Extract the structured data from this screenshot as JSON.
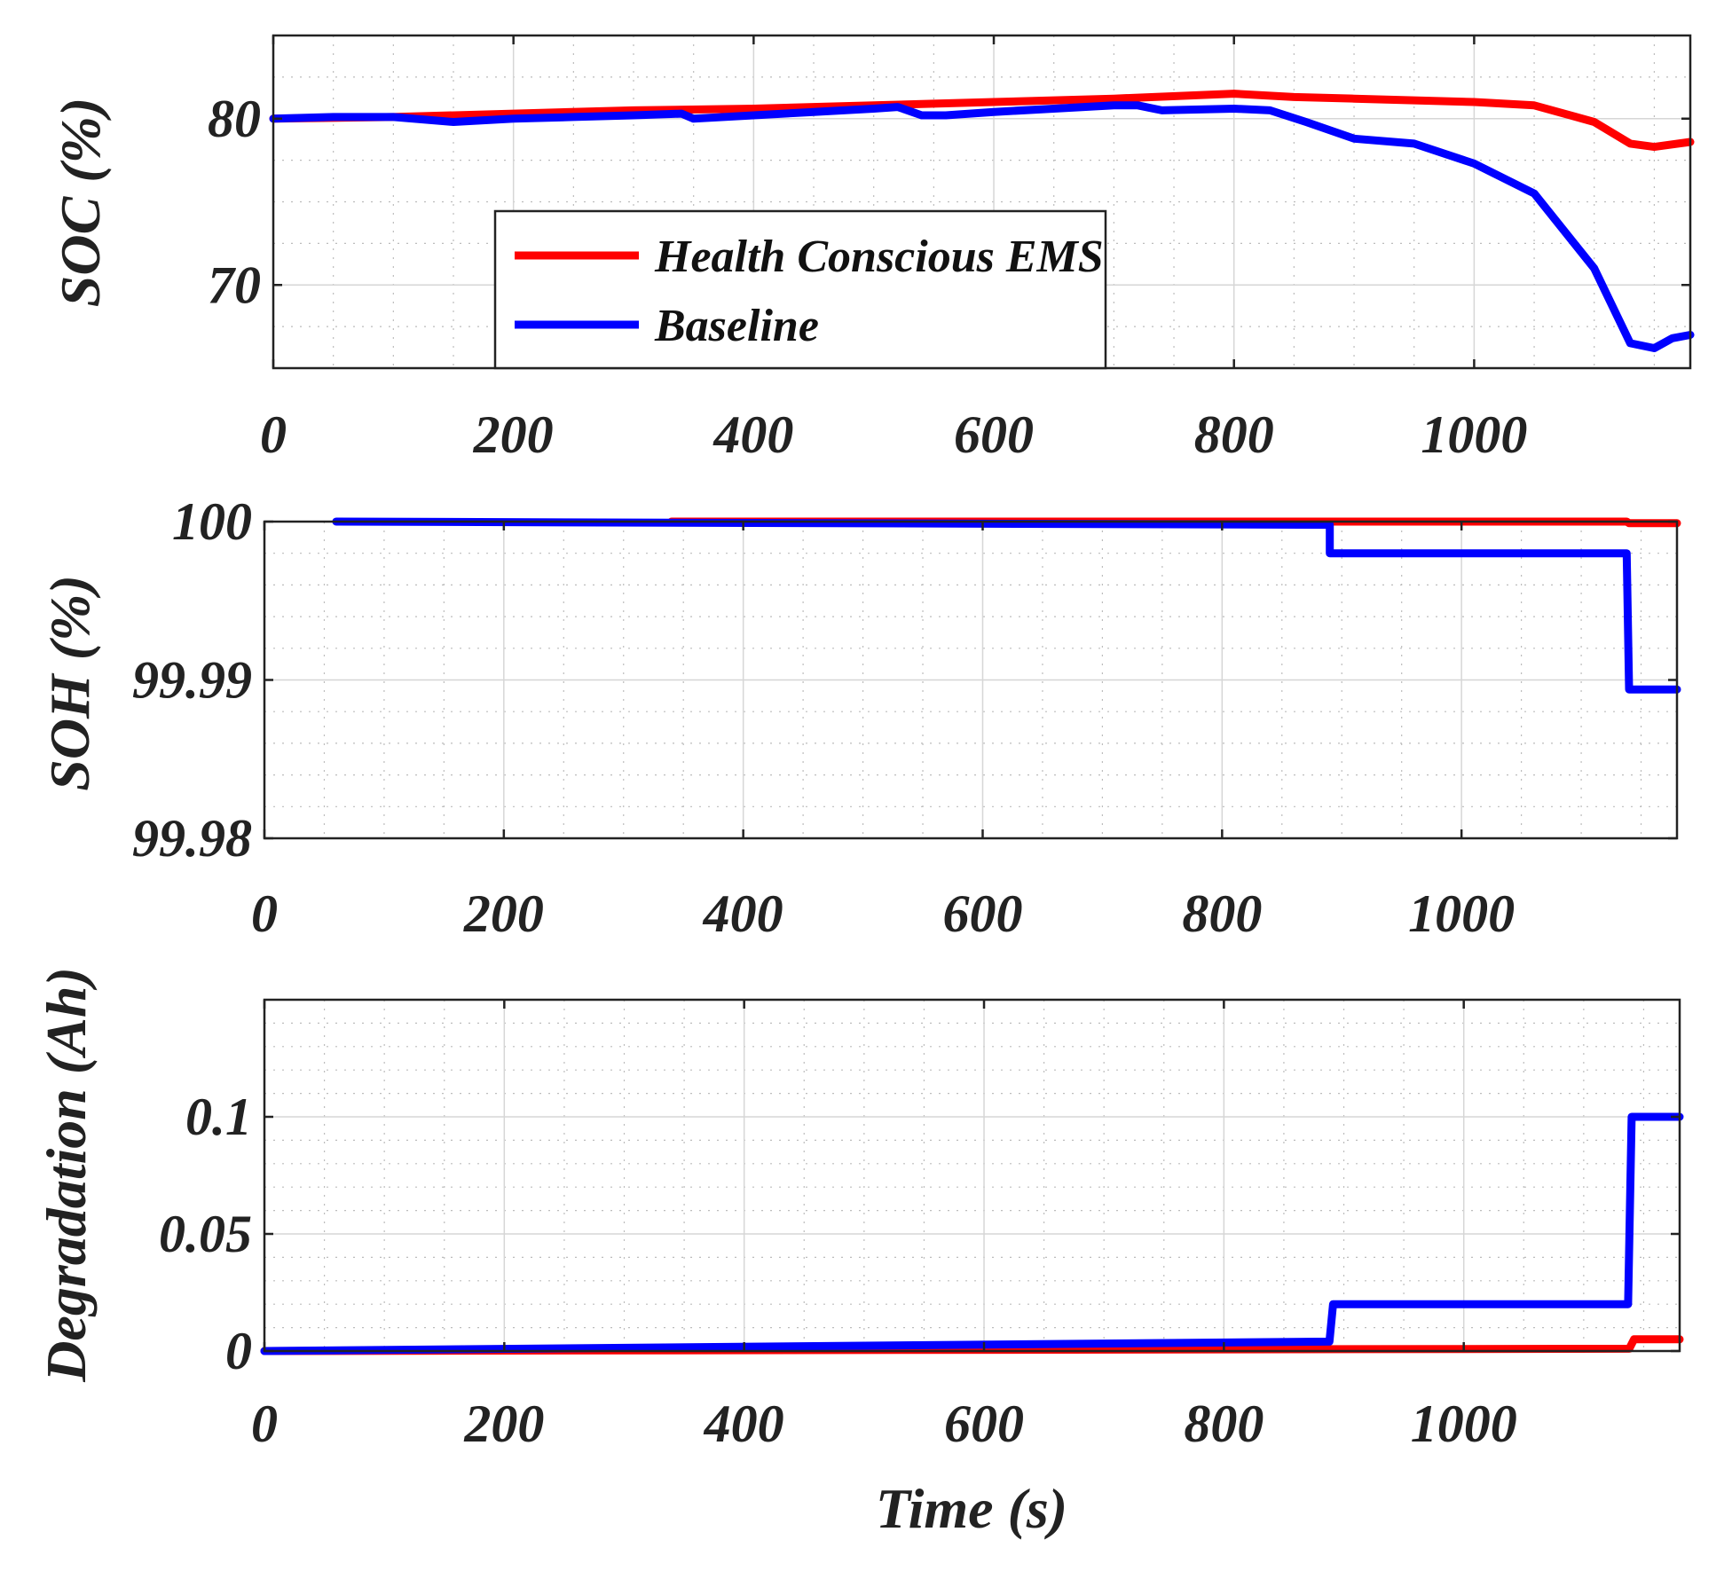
{
  "chart_data": [
    {
      "type": "line",
      "id": "soc",
      "title": "",
      "xlabel": "",
      "ylabel": "SOC (%)",
      "xlim": [
        0,
        1180
      ],
      "ylim": [
        65,
        85
      ],
      "xticks": [
        0,
        200,
        400,
        600,
        800,
        1000
      ],
      "yticks": [
        70,
        80
      ],
      "grid": true,
      "legend": {
        "placement": "center-left",
        "entries": [
          "Health Conscious EMS",
          "Baseline"
        ]
      },
      "series": [
        {
          "name": "Health Conscious EMS",
          "color": "#ff0000",
          "x": [
            0,
            100,
            200,
            300,
            400,
            500,
            600,
            700,
            800,
            850,
            900,
            1000,
            1050,
            1100,
            1130,
            1150,
            1180
          ],
          "y": [
            80,
            80.1,
            80.3,
            80.5,
            80.6,
            80.8,
            81,
            81.2,
            81.5,
            81.3,
            81.2,
            81,
            80.8,
            79.8,
            78.5,
            78.3,
            78.6
          ]
        },
        {
          "name": "Baseline",
          "color": "#0000ff",
          "x": [
            0,
            50,
            100,
            150,
            200,
            250,
            300,
            340,
            350,
            400,
            450,
            500,
            520,
            540,
            560,
            600,
            650,
            700,
            720,
            740,
            800,
            830,
            860,
            900,
            950,
            1000,
            1050,
            1100,
            1130,
            1150,
            1165,
            1180
          ],
          "y": [
            80,
            80.1,
            80.1,
            79.8,
            80,
            80.1,
            80.2,
            80.3,
            80,
            80.2,
            80.4,
            80.6,
            80.7,
            80.2,
            80.2,
            80.4,
            80.6,
            80.8,
            80.8,
            80.5,
            80.6,
            80.5,
            79.8,
            78.8,
            78.5,
            77.3,
            75.5,
            71,
            66.5,
            66.2,
            66.8,
            67
          ]
        }
      ]
    },
    {
      "type": "line",
      "id": "soh",
      "title": "",
      "xlabel": "",
      "ylabel": "SOH (%)",
      "xlim": [
        0,
        1180
      ],
      "ylim": [
        99.98,
        100
      ],
      "xticks": [
        0,
        200,
        400,
        600,
        800,
        1000
      ],
      "yticks": [
        99.98,
        99.99,
        100
      ],
      "grid": true,
      "series": [
        {
          "name": "Health Conscious EMS",
          "color": "#ff0000",
          "x": [
            340,
            900,
            1138,
            1140,
            1180
          ],
          "y": [
            100,
            100,
            100,
            99.9999,
            99.9999
          ]
        },
        {
          "name": "Baseline",
          "color": "#0000ff",
          "x": [
            60,
            890,
            890,
            1138,
            1140,
            1180
          ],
          "y": [
            100,
            99.9998,
            99.998,
            99.998,
            99.9894,
            99.9894
          ]
        }
      ]
    },
    {
      "type": "line",
      "id": "degradation",
      "title": "",
      "xlabel": "Time (s)",
      "ylabel": "Degradation (Ah)",
      "xlim": [
        0,
        1180
      ],
      "ylim": [
        0,
        0.15
      ],
      "xticks": [
        0,
        200,
        400,
        600,
        800,
        1000
      ],
      "yticks": [
        0,
        0.05,
        0.1
      ],
      "grid": true,
      "series": [
        {
          "name": "Health Conscious EMS",
          "color": "#ff0000",
          "x": [
            0,
            1138,
            1142,
            1180
          ],
          "y": [
            0,
            0.001,
            0.005,
            0.005
          ]
        },
        {
          "name": "Baseline",
          "color": "#0000ff",
          "x": [
            0,
            888,
            891,
            1137,
            1140,
            1180
          ],
          "y": [
            0,
            0.004,
            0.02,
            0.02,
            0.1,
            0.1
          ]
        }
      ]
    }
  ]
}
